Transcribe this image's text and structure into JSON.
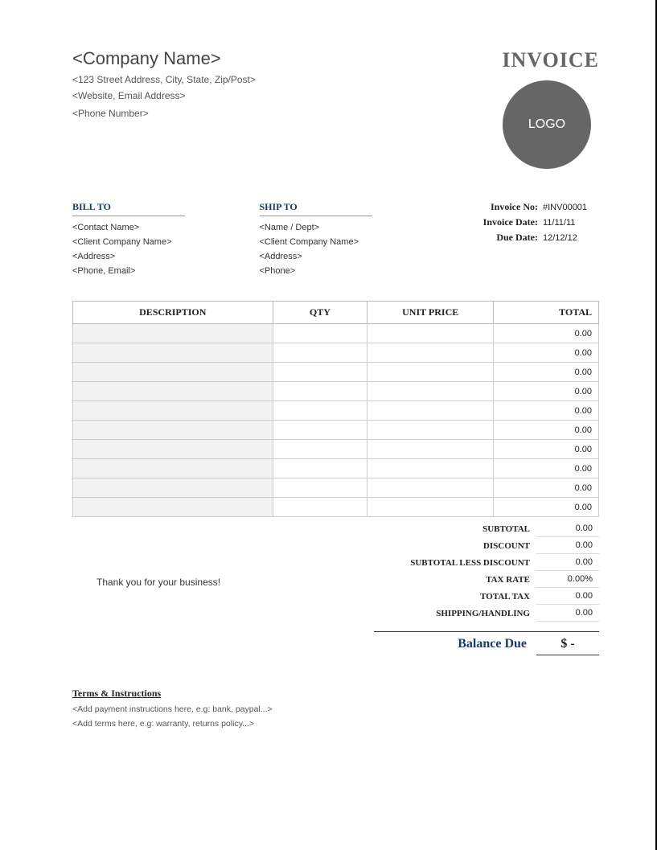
{
  "company": {
    "name": "<Company Name>",
    "address": "<123 Street Address, City, State, Zip/Post>",
    "web_email": "<Website, Email Address>",
    "phone": "<Phone Number>"
  },
  "invoice_title": "INVOICE",
  "logo_text": "LOGO",
  "bill_to": {
    "label": "BILL TO",
    "contact": "<Contact Name>",
    "company": "<Client Company Name>",
    "address": "<Address>",
    "phone_email": "<Phone, Email>"
  },
  "ship_to": {
    "label": "SHIP TO",
    "name": "<Name / Dept>",
    "company": "<Client Company Name>",
    "address": "<Address>",
    "phone": "<Phone>"
  },
  "meta": {
    "invoice_no_label": "Invoice No:",
    "invoice_no": "#INV00001",
    "invoice_date_label": "Invoice Date:",
    "invoice_date": "11/11/11",
    "due_date_label": "Due Date:",
    "due_date": "12/12/12"
  },
  "table": {
    "headers": {
      "description": "DESCRIPTION",
      "qty": "QTY",
      "unit_price": "UNIT PRICE",
      "total": "TOTAL"
    },
    "rows": [
      {
        "description": "",
        "qty": "",
        "unit_price": "",
        "total": "0.00"
      },
      {
        "description": "",
        "qty": "",
        "unit_price": "",
        "total": "0.00"
      },
      {
        "description": "",
        "qty": "",
        "unit_price": "",
        "total": "0.00"
      },
      {
        "description": "",
        "qty": "",
        "unit_price": "",
        "total": "0.00"
      },
      {
        "description": "",
        "qty": "",
        "unit_price": "",
        "total": "0.00"
      },
      {
        "description": "",
        "qty": "",
        "unit_price": "",
        "total": "0.00"
      },
      {
        "description": "",
        "qty": "",
        "unit_price": "",
        "total": "0.00"
      },
      {
        "description": "",
        "qty": "",
        "unit_price": "",
        "total": "0.00"
      },
      {
        "description": "",
        "qty": "",
        "unit_price": "",
        "total": "0.00"
      },
      {
        "description": "",
        "qty": "",
        "unit_price": "",
        "total": "0.00"
      }
    ]
  },
  "thank_you": "Thank you for your business!",
  "summary": {
    "subtotal_label": "SUBTOTAL",
    "subtotal": "0.00",
    "discount_label": "DISCOUNT",
    "discount": "0.00",
    "subtotal_less_discount_label": "SUBTOTAL LESS DISCOUNT",
    "subtotal_less_discount": "0.00",
    "tax_rate_label": "TAX RATE",
    "tax_rate": "0.00%",
    "total_tax_label": "TOTAL TAX",
    "total_tax": "0.00",
    "shipping_label": "SHIPPING/HANDLING",
    "shipping": "0.00",
    "balance_due_label": "Balance Due",
    "balance_due": "$     -"
  },
  "terms": {
    "title": "Terms & Instructions",
    "line1": "<Add payment instructions here, e.g: bank, paypal...>",
    "line2": "<Add terms here, e.g: warranty, returns policy...>"
  }
}
